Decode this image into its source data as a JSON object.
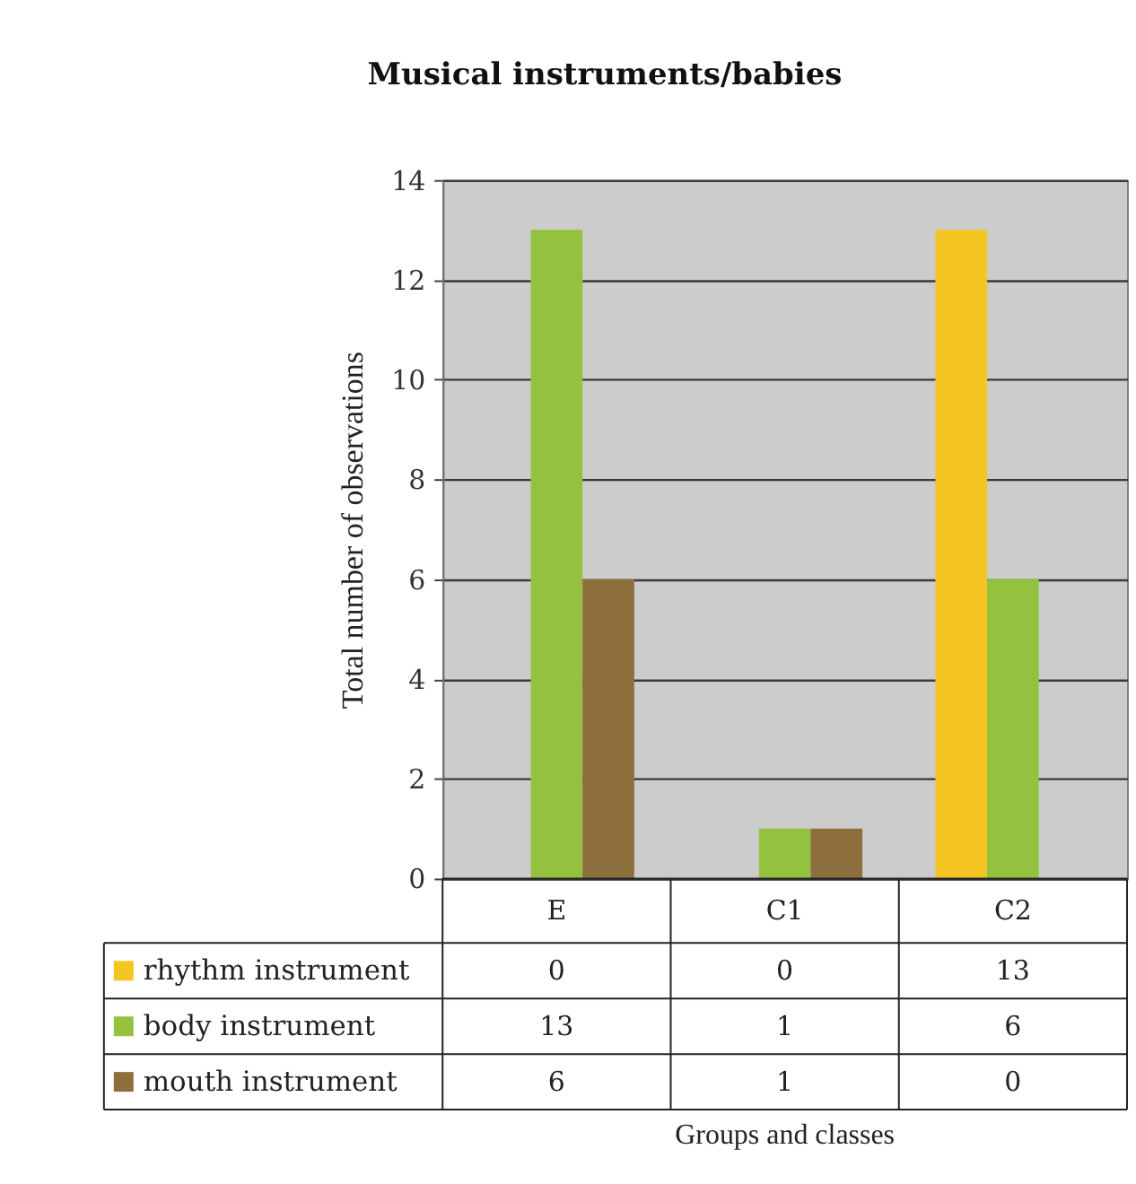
{
  "chart_data": {
    "type": "bar",
    "title": "Musical instruments/babies",
    "ylabel": "Total number of observations",
    "categories": [
      "E",
      "C1",
      "C2"
    ],
    "series": [
      {
        "name": "rhythm instrument",
        "color": "#f5c623",
        "values": [
          0,
          0,
          13
        ]
      },
      {
        "name": "body instrument",
        "color": "#94c23f",
        "values": [
          13,
          1,
          6
        ]
      },
      {
        "name": "mouth instrument",
        "color": "#8c6f3c",
        "values": [
          6,
          1,
          0
        ]
      }
    ],
    "ylim": [
      0,
      14
    ],
    "yticks": [
      0,
      2,
      4,
      6,
      8,
      10,
      12,
      14
    ],
    "grid": "y",
    "data_labels": true,
    "legend": "bottom",
    "annotations": [
      "Groups and classes"
    ]
  }
}
